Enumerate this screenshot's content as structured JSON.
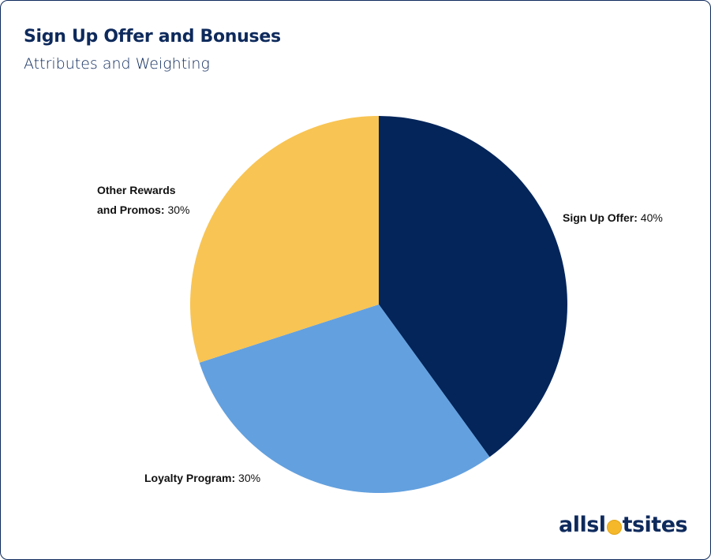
{
  "header": {
    "title": "Sign Up Offer and Bonuses",
    "subtitle": "Attributes and Weighting"
  },
  "chart_data": {
    "type": "pie",
    "title": "Sign Up Offer and Bonuses",
    "subtitle": "Attributes and Weighting",
    "slices": [
      {
        "label": "Sign Up Offer:",
        "value": 40,
        "value_text": "40%",
        "color": "#03255a"
      },
      {
        "label": "Loyalty Program:",
        "value": 30,
        "value_text": "30%",
        "color": "#63a0df"
      },
      {
        "label": "Other Rewards and Promos:",
        "label_line1": "Other Rewards",
        "label_line2": "and Promos:",
        "value": 30,
        "value_text": "30%",
        "color": "#f8c453"
      }
    ],
    "start": "top",
    "direction": "clockwise"
  },
  "logo": {
    "text_before": "allsl",
    "text_after": "tsites",
    "full": "allslotsites"
  }
}
